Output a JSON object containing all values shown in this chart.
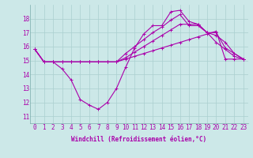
{
  "xlabel": "Windchill (Refroidissement éolien,°C)",
  "background_color": "#cce8e8",
  "grid_color": "#aacfcf",
  "line_color": "#aa00aa",
  "x_labels": [
    "0",
    "1",
    "2",
    "3",
    "4",
    "5",
    "6",
    "7",
    "8",
    "9",
    "10",
    "11",
    "12",
    "13",
    "14",
    "15",
    "16",
    "17",
    "18",
    "19",
    "20",
    "21",
    "22",
    "23"
  ],
  "ylim": [
    10.5,
    19.0
  ],
  "yticks": [
    11,
    12,
    13,
    14,
    15,
    16,
    17,
    18
  ],
  "series": [
    [
      15.8,
      14.9,
      14.9,
      14.4,
      13.6,
      12.2,
      11.8,
      11.5,
      12.0,
      13.0,
      14.5,
      15.9,
      16.9,
      17.5,
      17.5,
      18.5,
      18.6,
      17.8,
      17.6,
      17.0,
      16.3,
      15.8,
      15.3,
      15.1
    ],
    [
      15.8,
      14.9,
      14.9,
      14.9,
      14.9,
      14.9,
      14.9,
      14.9,
      14.9,
      14.9,
      15.1,
      15.3,
      15.5,
      15.7,
      15.9,
      16.1,
      16.3,
      16.5,
      16.7,
      16.9,
      17.1,
      15.1,
      15.1,
      15.1
    ],
    [
      15.8,
      14.9,
      14.9,
      14.9,
      14.9,
      14.9,
      14.9,
      14.9,
      14.9,
      14.9,
      15.5,
      16.0,
      16.5,
      17.0,
      17.4,
      17.9,
      18.3,
      17.5,
      17.5,
      17.0,
      16.8,
      16.3,
      15.5,
      15.1
    ],
    [
      15.8,
      14.9,
      14.9,
      14.9,
      14.9,
      14.9,
      14.9,
      14.9,
      14.9,
      14.9,
      15.2,
      15.6,
      16.0,
      16.4,
      16.8,
      17.2,
      17.6,
      17.6,
      17.6,
      17.0,
      17.0,
      15.9,
      15.5,
      15.1
    ]
  ],
  "tick_fontsize": 5.5,
  "xlabel_fontsize": 5.5,
  "marker_size": 2.5,
  "linewidth": 0.8
}
